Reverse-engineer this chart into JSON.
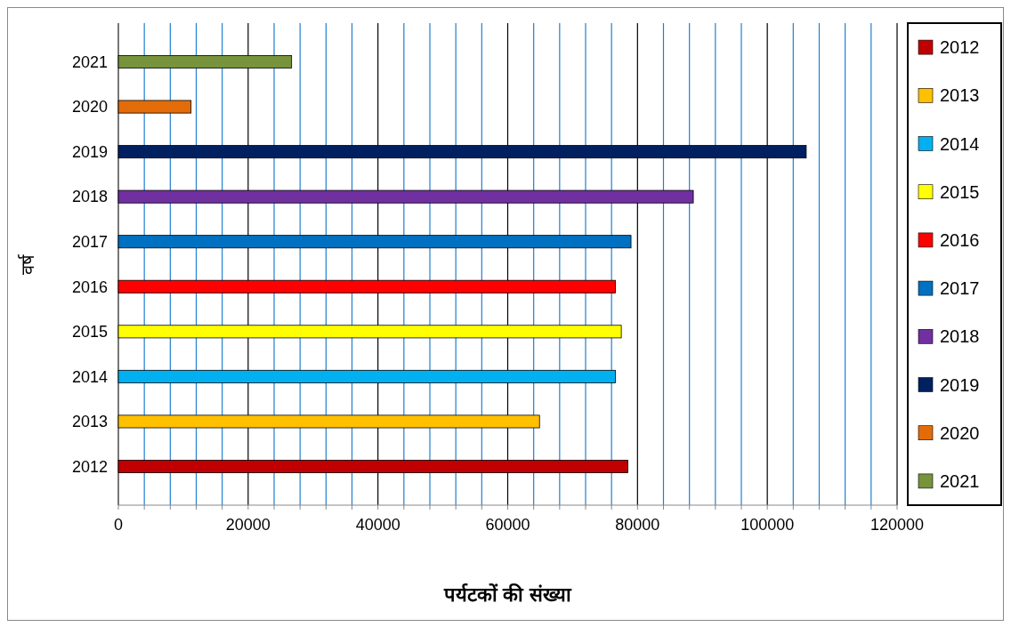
{
  "chart_data": {
    "type": "bar",
    "orientation": "horizontal",
    "xlabel": "पर्यटकों की संख्या",
    "ylabel": "वर्ष",
    "categories": [
      "2021",
      "2020",
      "2019",
      "2018",
      "2017",
      "2016",
      "2015",
      "2014",
      "2013",
      "2012"
    ],
    "series": [
      {
        "name": "2012",
        "color": "#c00000",
        "values": [
          null,
          null,
          null,
          null,
          null,
          null,
          null,
          null,
          null,
          78500
        ]
      },
      {
        "name": "2013",
        "color": "#ffc000",
        "values": [
          null,
          null,
          null,
          null,
          null,
          null,
          null,
          null,
          64900,
          null
        ]
      },
      {
        "name": "2014",
        "color": "#00b0f0",
        "values": [
          null,
          null,
          null,
          null,
          null,
          null,
          null,
          76600,
          null,
          null
        ]
      },
      {
        "name": "2015",
        "color": "#ffff00",
        "values": [
          null,
          null,
          null,
          null,
          null,
          null,
          77500,
          null,
          null,
          null
        ]
      },
      {
        "name": "2016",
        "color": "#ff0000",
        "values": [
          null,
          null,
          null,
          null,
          null,
          76600,
          null,
          null,
          null,
          null
        ]
      },
      {
        "name": "2017",
        "color": "#0070c0",
        "values": [
          null,
          null,
          null,
          null,
          79000,
          null,
          null,
          null,
          null,
          null
        ]
      },
      {
        "name": "2018",
        "color": "#7030a0",
        "values": [
          null,
          null,
          null,
          88600,
          null,
          null,
          null,
          null,
          null,
          null
        ]
      },
      {
        "name": "2019",
        "color": "#002060",
        "values": [
          null,
          null,
          106000,
          null,
          null,
          null,
          null,
          null,
          null,
          null
        ]
      },
      {
        "name": "2020",
        "color": "#e36c09",
        "values": [
          null,
          11200,
          null,
          null,
          null,
          null,
          null,
          null,
          null,
          null
        ]
      },
      {
        "name": "2021",
        "color": "#77933c",
        "values": [
          26700,
          null,
          null,
          null,
          null,
          null,
          null,
          null,
          null,
          null
        ]
      }
    ],
    "xlim": [
      0,
      120000
    ],
    "xticks": [
      0,
      {
        "value": 4000,
        "label": null
      },
      {
        "value": 8000,
        "label": null
      },
      {
        "value": 12000,
        "label": null
      },
      {
        "value": 16000,
        "label": null
      },
      20000,
      {
        "value": 24000,
        "label": null
      },
      {
        "value": 28000,
        "label": null
      },
      {
        "value": 32000,
        "label": null
      },
      {
        "value": 36000,
        "label": null
      },
      40000,
      {
        "value": 44000,
        "label": null
      },
      {
        "value": 48000,
        "label": null
      },
      {
        "value": 52000,
        "label": null
      },
      {
        "value": 56000,
        "label": null
      },
      60000,
      {
        "value": 64000,
        "label": null
      },
      {
        "value": 68000,
        "label": null
      },
      {
        "value": 72000,
        "label": null
      },
      {
        "value": 76000,
        "label": null
      },
      80000,
      {
        "value": 84000,
        "label": null
      },
      {
        "value": 88000,
        "label": null
      },
      {
        "value": 92000,
        "label": null
      },
      {
        "value": 96000,
        "label": null
      },
      100000,
      {
        "value": 104000,
        "label": null
      },
      {
        "value": 108000,
        "label": null
      },
      {
        "value": 112000,
        "label": null
      },
      {
        "value": 116000,
        "label": null
      },
      120000
    ],
    "grid": "x",
    "legend": "right"
  }
}
